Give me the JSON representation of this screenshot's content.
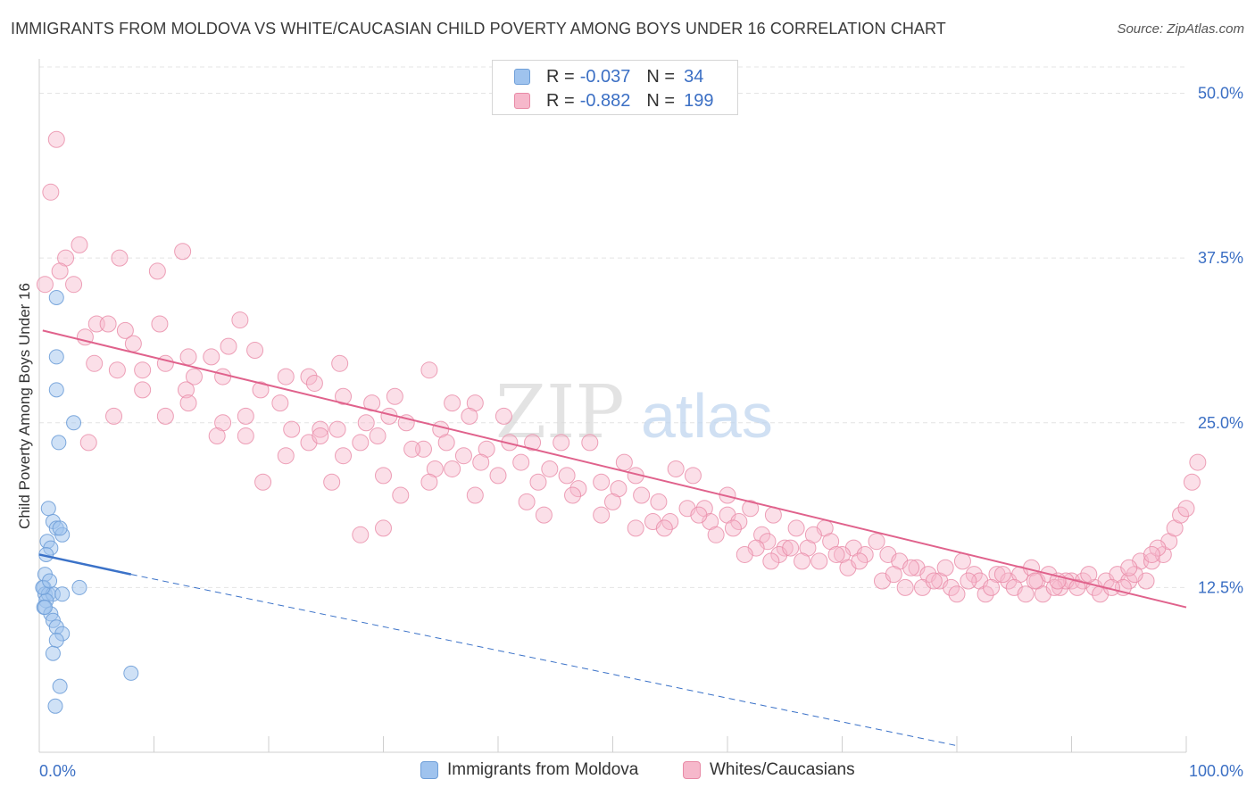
{
  "header": {
    "title": "IMMIGRANTS FROM MOLDOVA VS WHITE/CAUCASIAN CHILD POVERTY AMONG BOYS UNDER 16 CORRELATION CHART",
    "source": "Source: ZipAtlas.com"
  },
  "watermark": {
    "zip": "ZIP",
    "atlas": "atlas"
  },
  "legend": {
    "rows": [
      {
        "r_label": "R = ",
        "r_value": "-0.037",
        "n_label": "N = ",
        "n_value": "34",
        "color": "#9fc3ee",
        "border": "#6f9fd8"
      },
      {
        "r_label": "R = ",
        "r_value": "-0.882",
        "n_label": "N = ",
        "n_value": "199",
        "color": "#f6b8cb",
        "border": "#e88aa6"
      }
    ]
  },
  "bottom_legend": {
    "series1": "Immigrants from Moldova",
    "series2": "Whites/Caucasians"
  },
  "chart_data": {
    "type": "scatter",
    "title": "IMMIGRANTS FROM MOLDOVA VS WHITE/CAUCASIAN CHILD POVERTY AMONG BOYS UNDER 16 CORRELATION CHART",
    "xlabel": "",
    "ylabel": "Child Poverty Among Boys Under 16",
    "xlim": [
      0,
      100
    ],
    "ylim": [
      0,
      52
    ],
    "x_tick_labels": [
      "0.0%",
      "100.0%"
    ],
    "y_ticks": [
      12.5,
      25.0,
      37.5,
      50.0
    ],
    "y_tick_labels": [
      "12.5%",
      "25.0%",
      "37.5%",
      "50.0%"
    ],
    "grid": true,
    "legend_position": "top-center",
    "colors": {
      "moldova": "#6f9fd8",
      "moldova_line": "#3b72c8",
      "white": "#e88aa6",
      "white_line": "#e0628c",
      "axis_text": "#3b6fc4"
    },
    "series": [
      {
        "name": "Immigrants from Moldova",
        "trend": {
          "x": [
            0,
            8
          ],
          "y": [
            15.0,
            13.5
          ],
          "dashed_to": [
            80,
            0.5
          ]
        },
        "points": [
          [
            1.5,
            34.5
          ],
          [
            1.5,
            30.0
          ],
          [
            1.5,
            27.5
          ],
          [
            3.0,
            25.0
          ],
          [
            1.7,
            23.5
          ],
          [
            0.8,
            18.5
          ],
          [
            1.2,
            17.5
          ],
          [
            1.5,
            17.0
          ],
          [
            2.0,
            16.5
          ],
          [
            0.7,
            16.0
          ],
          [
            1.0,
            15.5
          ],
          [
            0.6,
            15.0
          ],
          [
            0.5,
            13.5
          ],
          [
            0.4,
            12.5
          ],
          [
            0.5,
            12.0
          ],
          [
            0.8,
            12.0
          ],
          [
            1.2,
            12.0
          ],
          [
            0.6,
            11.5
          ],
          [
            0.4,
            11.0
          ],
          [
            1.0,
            10.5
          ],
          [
            1.2,
            10.0
          ],
          [
            1.5,
            9.5
          ],
          [
            2.0,
            9.0
          ],
          [
            1.5,
            8.5
          ],
          [
            1.2,
            7.5
          ],
          [
            1.8,
            5.0
          ],
          [
            1.4,
            3.5
          ],
          [
            8.0,
            6.0
          ],
          [
            3.5,
            12.5
          ],
          [
            2.0,
            12.0
          ],
          [
            0.3,
            12.5
          ],
          [
            0.9,
            13.0
          ],
          [
            1.8,
            17.0
          ],
          [
            0.5,
            11.0
          ]
        ]
      },
      {
        "name": "Whites/Caucasians",
        "trend": {
          "x": [
            0.3,
            100
          ],
          "y": [
            32.0,
            11.0
          ]
        },
        "points": [
          [
            1.5,
            46.5
          ],
          [
            1.0,
            42.5
          ],
          [
            3.5,
            38.5
          ],
          [
            2.3,
            37.5
          ],
          [
            1.8,
            36.5
          ],
          [
            3.0,
            35.5
          ],
          [
            0.5,
            35.5
          ],
          [
            12.5,
            38.0
          ],
          [
            7.0,
            37.5
          ],
          [
            10.3,
            36.5
          ],
          [
            4.0,
            31.5
          ],
          [
            5.0,
            32.5
          ],
          [
            6.0,
            32.5
          ],
          [
            7.5,
            32.0
          ],
          [
            8.2,
            31.0
          ],
          [
            10.5,
            32.5
          ],
          [
            17.5,
            32.8
          ],
          [
            4.8,
            29.5
          ],
          [
            6.8,
            29.0
          ],
          [
            9.0,
            29.0
          ],
          [
            11.0,
            29.5
          ],
          [
            13.0,
            30.0
          ],
          [
            15.0,
            30.0
          ],
          [
            16.5,
            30.8
          ],
          [
            18.8,
            30.5
          ],
          [
            26.2,
            29.5
          ],
          [
            13.5,
            28.5
          ],
          [
            16.0,
            28.5
          ],
          [
            21.5,
            28.5
          ],
          [
            23.5,
            28.5
          ],
          [
            34.0,
            29.0
          ],
          [
            12.8,
            27.5
          ],
          [
            9.0,
            27.5
          ],
          [
            19.3,
            27.5
          ],
          [
            24.0,
            28.0
          ],
          [
            31.0,
            27.0
          ],
          [
            13.0,
            26.5
          ],
          [
            21.0,
            26.5
          ],
          [
            26.5,
            27.0
          ],
          [
            36.0,
            26.5
          ],
          [
            38.0,
            26.5
          ],
          [
            29.0,
            26.5
          ],
          [
            6.5,
            25.5
          ],
          [
            11.0,
            25.5
          ],
          [
            16.0,
            25.0
          ],
          [
            18.0,
            25.5
          ],
          [
            22.0,
            24.5
          ],
          [
            24.5,
            24.5
          ],
          [
            26.0,
            24.5
          ],
          [
            28.5,
            25.0
          ],
          [
            30.5,
            25.5
          ],
          [
            32.0,
            25.0
          ],
          [
            35.0,
            24.5
          ],
          [
            37.5,
            25.5
          ],
          [
            40.5,
            25.5
          ],
          [
            4.3,
            23.5
          ],
          [
            15.5,
            24.0
          ],
          [
            18.0,
            24.0
          ],
          [
            23.5,
            23.5
          ],
          [
            24.5,
            24.0
          ],
          [
            28.0,
            23.5
          ],
          [
            29.5,
            24.0
          ],
          [
            33.5,
            23.0
          ],
          [
            35.5,
            23.5
          ],
          [
            37.0,
            22.5
          ],
          [
            39.0,
            23.0
          ],
          [
            41.0,
            23.5
          ],
          [
            43.0,
            23.5
          ],
          [
            45.5,
            23.5
          ],
          [
            48.0,
            23.5
          ],
          [
            21.5,
            22.5
          ],
          [
            26.5,
            22.5
          ],
          [
            30.0,
            21.0
          ],
          [
            34.5,
            21.5
          ],
          [
            38.5,
            22.0
          ],
          [
            42.0,
            22.0
          ],
          [
            44.5,
            21.5
          ],
          [
            46.0,
            21.0
          ],
          [
            51.0,
            22.0
          ],
          [
            19.5,
            20.5
          ],
          [
            25.5,
            20.5
          ],
          [
            31.5,
            19.5
          ],
          [
            34.0,
            20.5
          ],
          [
            40.0,
            21.0
          ],
          [
            43.5,
            20.5
          ],
          [
            47.0,
            20.0
          ],
          [
            49.0,
            20.5
          ],
          [
            50.5,
            20.0
          ],
          [
            52.0,
            21.0
          ],
          [
            55.5,
            21.5
          ],
          [
            57.0,
            21.0
          ],
          [
            28.0,
            16.5
          ],
          [
            38.0,
            19.5
          ],
          [
            42.5,
            19.0
          ],
          [
            46.5,
            19.5
          ],
          [
            50.0,
            19.0
          ],
          [
            52.5,
            19.5
          ],
          [
            54.0,
            19.0
          ],
          [
            56.5,
            18.5
          ],
          [
            58.0,
            18.5
          ],
          [
            60.0,
            18.0
          ],
          [
            62.0,
            18.5
          ],
          [
            64.0,
            18.0
          ],
          [
            53.5,
            17.5
          ],
          [
            55.0,
            17.5
          ],
          [
            58.5,
            17.5
          ],
          [
            61.0,
            17.5
          ],
          [
            63.0,
            16.5
          ],
          [
            66.0,
            17.0
          ],
          [
            68.5,
            17.0
          ],
          [
            54.5,
            17.0
          ],
          [
            60.5,
            17.0
          ],
          [
            63.5,
            16.0
          ],
          [
            65.0,
            15.5
          ],
          [
            67.0,
            15.5
          ],
          [
            69.0,
            16.0
          ],
          [
            71.0,
            15.5
          ],
          [
            73.0,
            16.0
          ],
          [
            72.0,
            15.0
          ],
          [
            70.0,
            15.0
          ],
          [
            74.0,
            15.0
          ],
          [
            75.0,
            14.5
          ],
          [
            62.5,
            15.5
          ],
          [
            64.5,
            15.0
          ],
          [
            66.5,
            14.5
          ],
          [
            68.0,
            14.5
          ],
          [
            70.5,
            14.0
          ],
          [
            76.5,
            14.0
          ],
          [
            77.5,
            13.5
          ],
          [
            78.5,
            13.0
          ],
          [
            79.0,
            14.0
          ],
          [
            80.5,
            14.5
          ],
          [
            81.5,
            13.5
          ],
          [
            82.0,
            13.0
          ],
          [
            83.5,
            13.5
          ],
          [
            84.5,
            13.0
          ],
          [
            85.5,
            13.5
          ],
          [
            86.5,
            14.0
          ],
          [
            87.0,
            13.0
          ],
          [
            88.0,
            13.5
          ],
          [
            89.0,
            12.5
          ],
          [
            90.0,
            13.0
          ],
          [
            91.0,
            13.0
          ],
          [
            92.0,
            12.5
          ],
          [
            93.0,
            13.0
          ],
          [
            94.0,
            13.5
          ],
          [
            95.0,
            13.0
          ],
          [
            96.0,
            14.5
          ],
          [
            97.0,
            14.5
          ],
          [
            98.0,
            15.0
          ],
          [
            98.5,
            16.0
          ],
          [
            99.0,
            17.0
          ],
          [
            97.5,
            15.5
          ],
          [
            99.5,
            18.0
          ],
          [
            100.0,
            18.5
          ],
          [
            100.5,
            20.5
          ],
          [
            101.0,
            22.0
          ],
          [
            79.5,
            12.5
          ],
          [
            82.5,
            12.0
          ],
          [
            85.0,
            12.5
          ],
          [
            87.5,
            12.0
          ],
          [
            89.5,
            13.0
          ],
          [
            92.5,
            12.0
          ],
          [
            94.5,
            12.5
          ],
          [
            96.5,
            13.0
          ],
          [
            73.5,
            13.0
          ],
          [
            75.5,
            12.5
          ],
          [
            77.0,
            12.5
          ],
          [
            80.0,
            12.0
          ],
          [
            83.0,
            12.5
          ],
          [
            86.0,
            12.0
          ],
          [
            88.5,
            12.5
          ],
          [
            90.5,
            12.5
          ],
          [
            93.5,
            12.5
          ],
          [
            95.5,
            13.5
          ],
          [
            60.0,
            19.5
          ],
          [
            57.5,
            18.0
          ],
          [
            59.0,
            16.5
          ],
          [
            61.5,
            15.0
          ],
          [
            63.8,
            14.5
          ],
          [
            65.5,
            15.5
          ],
          [
            67.5,
            16.5
          ],
          [
            69.5,
            15.0
          ],
          [
            71.5,
            14.5
          ],
          [
            74.5,
            13.5
          ],
          [
            76.0,
            14.0
          ],
          [
            78.0,
            13.0
          ],
          [
            81.0,
            13.0
          ],
          [
            84.0,
            13.5
          ],
          [
            86.8,
            13.0
          ],
          [
            88.8,
            13.0
          ],
          [
            91.5,
            13.5
          ],
          [
            95.0,
            14.0
          ],
          [
            97.0,
            15.0
          ],
          [
            30.0,
            17.0
          ],
          [
            44.0,
            18.0
          ],
          [
            49.0,
            18.0
          ],
          [
            52.0,
            17.0
          ],
          [
            36.0,
            21.5
          ],
          [
            32.5,
            23.0
          ]
        ]
      }
    ]
  }
}
